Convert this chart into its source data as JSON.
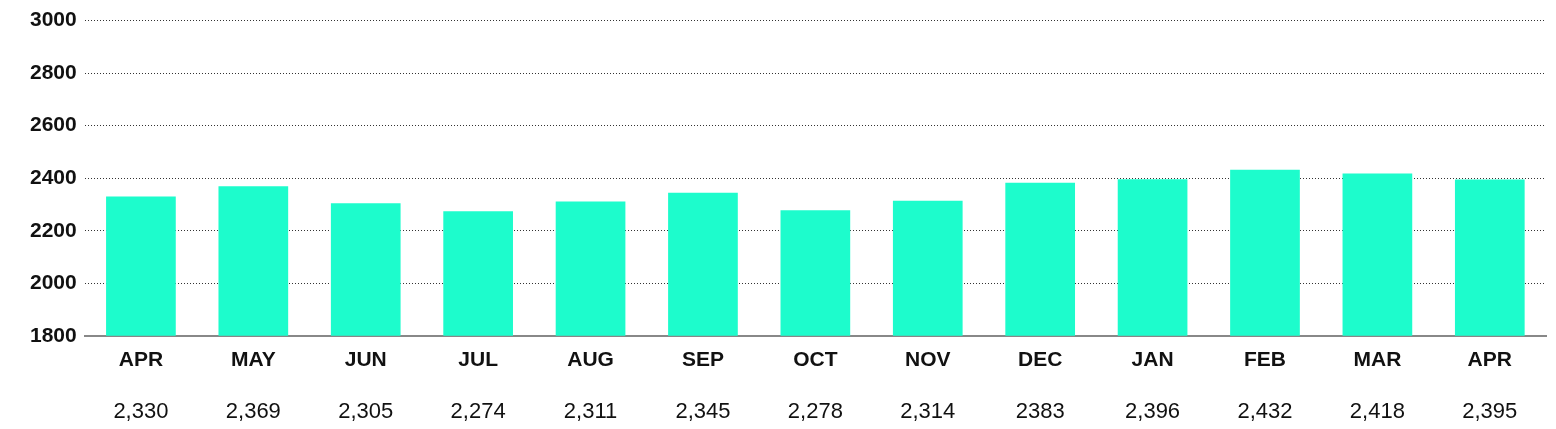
{
  "chart_data": {
    "type": "bar",
    "categories": [
      "APR",
      "MAY",
      "JUN",
      "JUL",
      "AUG",
      "SEP",
      "OCT",
      "NOV",
      "DEC",
      "JAN",
      "FEB",
      "MAR",
      "APR"
    ],
    "values": [
      2330,
      2369,
      2305,
      2274,
      2311,
      2345,
      2278,
      2314,
      2383,
      2396,
      2432,
      2418,
      2395
    ],
    "value_labels": [
      "2,330",
      "2,369",
      "2,305",
      "2,274",
      "2,311",
      "2,345",
      "2,278",
      "2,314",
      "2383",
      "2,396",
      "2,432",
      "2,418",
      "2,395"
    ],
    "color": "#1dfccc",
    "ylim": [
      1800,
      3000
    ],
    "yticks": [
      1800,
      2000,
      2200,
      2400,
      2600,
      2800,
      3000
    ],
    "grid": "y",
    "legend": false
  }
}
